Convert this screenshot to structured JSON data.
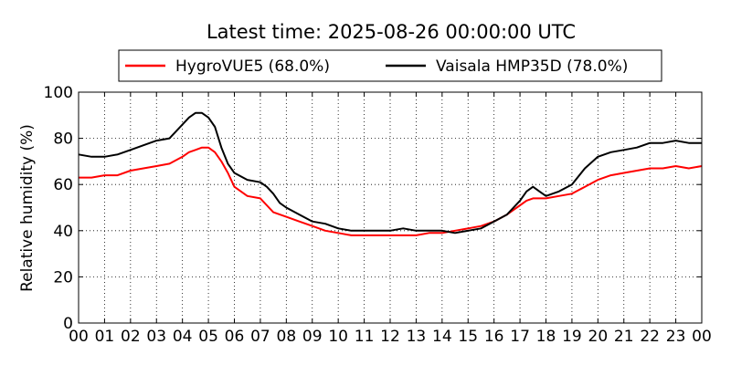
{
  "chart_data": {
    "type": "line",
    "title": "Latest time: 2025-08-26 00:00:00 UTC",
    "xlabel": "",
    "ylabel": "Relative humidity (%)",
    "x_tick_labels": [
      "00",
      "01",
      "02",
      "03",
      "04",
      "05",
      "06",
      "07",
      "08",
      "09",
      "10",
      "11",
      "12",
      "13",
      "14",
      "15",
      "16",
      "17",
      "18",
      "19",
      "20",
      "21",
      "22",
      "23",
      "00"
    ],
    "x_range_hours": [
      0,
      24
    ],
    "ylim": [
      0,
      100
    ],
    "y_ticks": [
      0,
      20,
      40,
      60,
      80,
      100
    ],
    "grid": true,
    "legend_position": "top-center",
    "x_hours": [
      0,
      0.5,
      1,
      1.5,
      2,
      2.5,
      3,
      3.5,
      4,
      4.25,
      4.5,
      4.75,
      5,
      5.25,
      5.5,
      5.75,
      6,
      6.5,
      7,
      7.25,
      7.5,
      7.75,
      8,
      8.5,
      9,
      9.5,
      10,
      10.5,
      11,
      11.5,
      12,
      12.5,
      13,
      13.5,
      14,
      14.5,
      15,
      15.5,
      16,
      16.5,
      17,
      17.25,
      17.5,
      17.75,
      18,
      18.5,
      19,
      19.5,
      20,
      20.5,
      21,
      21.5,
      22,
      22.5,
      23,
      23.5,
      24
    ],
    "series": [
      {
        "name": "HygroVUE5 (68.0%)",
        "color": "#ff0000",
        "values": [
          63,
          63,
          64,
          64,
          66,
          67,
          68,
          69,
          72,
          74,
          75,
          76,
          76,
          74,
          70,
          65,
          59,
          55,
          54,
          51,
          48,
          47,
          46,
          44,
          42,
          40,
          39,
          38,
          38,
          38,
          38,
          38,
          38,
          39,
          39,
          40,
          41,
          42,
          44,
          47,
          51,
          53,
          54,
          54,
          54,
          55,
          56,
          59,
          62,
          64,
          65,
          66,
          67,
          67,
          68,
          67,
          68
        ]
      },
      {
        "name": "Vaisala HMP35D (78.0%)",
        "color": "#000000",
        "values": [
          73,
          72,
          72,
          73,
          75,
          77,
          79,
          80,
          86,
          89,
          91,
          91,
          89,
          85,
          76,
          69,
          65,
          62,
          61,
          59,
          56,
          52,
          50,
          47,
          44,
          43,
          41,
          40,
          40,
          40,
          40,
          41,
          40,
          40,
          40,
          39,
          40,
          41,
          44,
          47,
          53,
          57,
          59,
          57,
          55,
          57,
          60,
          67,
          72,
          74,
          75,
          76,
          78,
          78,
          79,
          78,
          78
        ]
      }
    ]
  }
}
